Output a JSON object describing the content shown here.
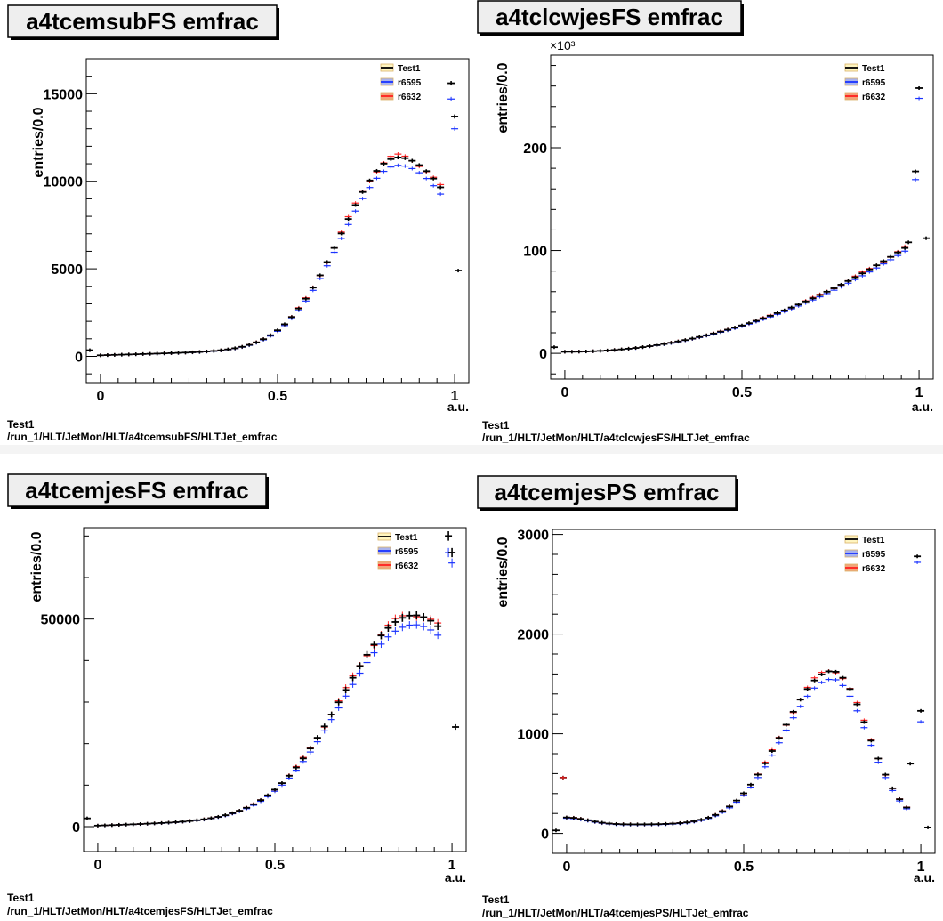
{
  "legend_items": [
    "Test1",
    "r6595",
    "r6632"
  ],
  "series_colors": {
    "Test1": "#000000",
    "r6595": "#1a33ff",
    "r6632": "#ff2020"
  },
  "chart_data": [
    {
      "type": "scatter",
      "title": "a4tcemsubFS emfrac",
      "ylabel": "entries/0.0",
      "xlabel": "a.u.",
      "xlim": [
        -0.04,
        1.04
      ],
      "ylim": [
        -1500,
        17000
      ],
      "xticks": [
        {
          "v": 0,
          "label": "0"
        },
        {
          "v": 0.5,
          "label": "0.5"
        },
        {
          "v": 1,
          "label": "1"
        }
      ],
      "yticks": [
        {
          "v": 0,
          "label": "0"
        },
        {
          "v": 5000,
          "label": "5000"
        },
        {
          "v": 10000,
          "label": "10000"
        },
        {
          "v": 15000,
          "label": "15000"
        }
      ],
      "exponent": "",
      "footer_line1": "Test1",
      "footer_line2": "/run_1/HLT/JetMon/HLT/a4tcemsubFS/HLTJet_emfrac",
      "shape": {
        "type": "peak",
        "mu": 0.84,
        "sigma_left": 0.16,
        "sigma_right": 0.2,
        "peak": 10800,
        "base": 60,
        "base_slope": 600
      },
      "blue_scale": 0.96,
      "edge_points": [
        {
          "x": -0.03,
          "y": 350,
          "series": "Test1"
        },
        {
          "x": 0.99,
          "y": 15600,
          "series": "Test1"
        },
        {
          "x": 0.99,
          "y": 14700,
          "series": "r6595"
        },
        {
          "x": 1.0,
          "y": 13700,
          "series": "Test1"
        },
        {
          "x": 1.0,
          "y": 13000,
          "series": "r6595"
        },
        {
          "x": 1.01,
          "y": 4900,
          "series": "Test1"
        }
      ]
    },
    {
      "type": "scatter",
      "title": "a4tclcwjesFS emfrac",
      "ylabel": "entries/0.0",
      "xlabel": "a.u.",
      "xlim": [
        -0.04,
        1.04
      ],
      "ylim": [
        -25,
        290
      ],
      "xticks": [
        {
          "v": 0,
          "label": "0"
        },
        {
          "v": 0.5,
          "label": "0.5"
        },
        {
          "v": 1,
          "label": "1"
        }
      ],
      "yticks": [
        {
          "v": 0,
          "label": "0"
        },
        {
          "v": 100,
          "label": "100"
        },
        {
          "v": 200,
          "label": "200"
        }
      ],
      "exponent": "×10³",
      "footer_line1": "Test1",
      "footer_line2": "/run_1/HLT/JetMon/HLT/a4tclcwjesFS/HLTJet_emfrac",
      "shape": {
        "type": "rise",
        "a": 1.5,
        "k": 110,
        "p": 2.1
      },
      "blue_scale": 0.97,
      "edge_points": [
        {
          "x": -0.03,
          "y": 6,
          "series": "Test1"
        },
        {
          "x": 0.97,
          "y": 108,
          "series": "Test1"
        },
        {
          "x": 0.99,
          "y": 177,
          "series": "Test1"
        },
        {
          "x": 0.99,
          "y": 169,
          "series": "r6595"
        },
        {
          "x": 1.0,
          "y": 258,
          "series": "Test1"
        },
        {
          "x": 1.0,
          "y": 248,
          "series": "r6595"
        },
        {
          "x": 1.02,
          "y": 112,
          "series": "Test1"
        }
      ]
    },
    {
      "type": "scatter",
      "title": "a4tcemjesFS emfrac",
      "ylabel": "entries/0.0",
      "xlabel": "a.u.",
      "xlim": [
        -0.04,
        1.04
      ],
      "ylim": [
        -6000,
        72000
      ],
      "xticks": [
        {
          "v": 0,
          "label": "0"
        },
        {
          "v": 0.5,
          "label": "0.5"
        },
        {
          "v": 1,
          "label": "1"
        }
      ],
      "yticks": [
        {
          "v": 0,
          "label": "0"
        },
        {
          "v": 50000,
          "label": "50000"
        }
      ],
      "exponent": "",
      "footer_line1": "Test1",
      "footer_line2": "/run_1/HLT/JetMon/HLT/a4tcemjesFS/HLTJet_emfrac",
      "shape": {
        "type": "peak",
        "mu": 0.89,
        "sigma_left": 0.2,
        "sigma_right": 0.2,
        "peak": 48000,
        "base": 250,
        "base_slope": 3000
      },
      "blue_scale": 0.955,
      "edge_points": [
        {
          "x": -0.03,
          "y": 2000,
          "series": "Test1"
        },
        {
          "x": 0.99,
          "y": 70000,
          "series": "Test1"
        },
        {
          "x": 0.99,
          "y": 66000,
          "series": "r6595"
        },
        {
          "x": 1.0,
          "y": 66000,
          "series": "Test1"
        },
        {
          "x": 1.0,
          "y": 63500,
          "series": "r6595"
        },
        {
          "x": 1.01,
          "y": 24000,
          "series": "Test1"
        }
      ]
    },
    {
      "type": "scatter",
      "title": "a4tcemjesPS emfrac",
      "ylabel": "entries/0.0",
      "xlabel": "a.u.",
      "xlim": [
        -0.04,
        1.04
      ],
      "ylim": [
        -200,
        3050
      ],
      "xticks": [
        {
          "v": 0,
          "label": "0"
        },
        {
          "v": 0.5,
          "label": "0.5"
        },
        {
          "v": 1,
          "label": "1"
        }
      ],
      "yticks": [
        {
          "v": 0,
          "label": "0"
        },
        {
          "v": 1000,
          "label": "1000"
        },
        {
          "v": 2000,
          "label": "2000"
        },
        {
          "v": 3000,
          "label": "3000"
        }
      ],
      "exponent": "",
      "footer_line1": "Test1",
      "footer_line2": "/run_1/HLT/JetMon/HLT/a4tcemjesPS/HLTJet_emfrac",
      "shape": {
        "type": "ps"
      },
      "blue_scale": 0.95,
      "edge_points": [
        {
          "x": -0.03,
          "y": 30,
          "series": "Test1"
        },
        {
          "x": -0.01,
          "y": 560,
          "series": "Test1"
        },
        {
          "x": -0.01,
          "y": 560,
          "series": "r6632"
        },
        {
          "x": 0.97,
          "y": 700,
          "series": "Test1"
        },
        {
          "x": 0.99,
          "y": 2780,
          "series": "Test1"
        },
        {
          "x": 0.99,
          "y": 2720,
          "series": "r6595"
        },
        {
          "x": 1.0,
          "y": 1230,
          "series": "Test1"
        },
        {
          "x": 1.0,
          "y": 1120,
          "series": "r6595"
        },
        {
          "x": 1.02,
          "y": 60,
          "series": "Test1"
        }
      ]
    }
  ]
}
